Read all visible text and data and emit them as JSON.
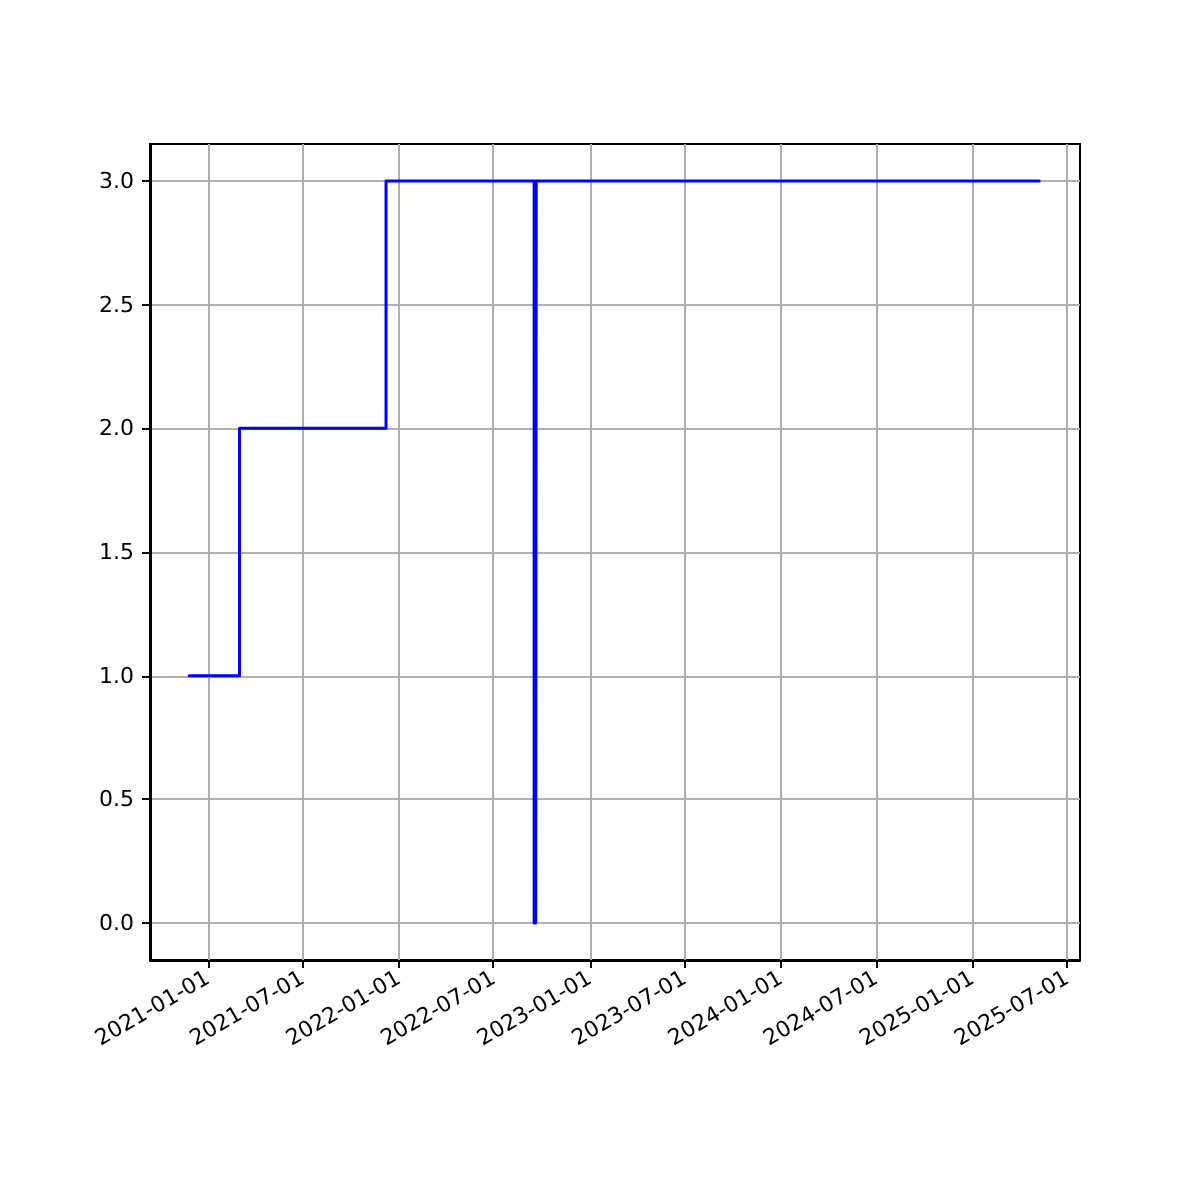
{
  "chart_data": {
    "type": "step",
    "x": [
      "2020-11-27",
      "2021-03-03",
      "2021-12-08",
      "2022-09-17",
      "2022-09-18",
      "2022-09-20",
      "2022-09-21",
      "2025-05-09"
    ],
    "series": [
      {
        "color": "#0000ff",
        "values": [
          1,
          2,
          3,
          0,
          3,
          0,
          3,
          3
        ]
      }
    ],
    "xlim": [
      "2020-09-13",
      "2025-07-26"
    ],
    "xticks": [
      "2021-01-01",
      "2021-07-01",
      "2022-01-01",
      "2022-07-01",
      "2023-01-01",
      "2023-07-01",
      "2024-01-01",
      "2024-07-01",
      "2025-01-01",
      "2025-07-01"
    ],
    "ylim": [
      -0.15,
      3.15
    ],
    "yticks": [
      {
        "value": 0,
        "label": "0.0"
      },
      {
        "value": 0.5,
        "label": "0.5"
      },
      {
        "value": 1,
        "label": "1.0"
      },
      {
        "value": 1.5,
        "label": "1.5"
      },
      {
        "value": 2,
        "label": "2.0"
      },
      {
        "value": 2.5,
        "label": "2.5"
      },
      {
        "value": 3,
        "label": "3.0"
      }
    ],
    "grid": true,
    "marker": "none",
    "line_style": "solid"
  }
}
